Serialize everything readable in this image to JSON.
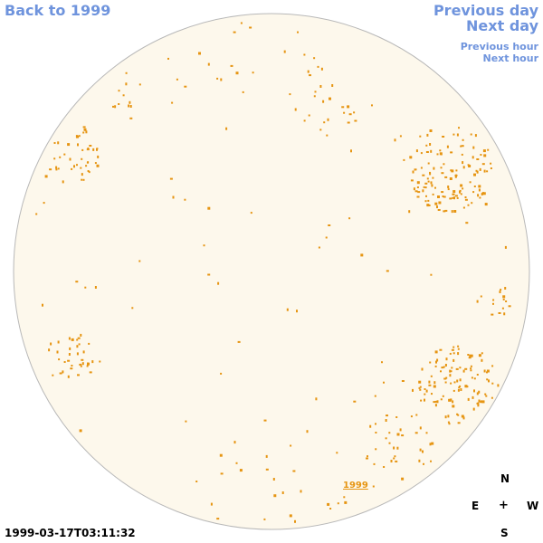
{
  "nav": {
    "back_label": "Back to 1999",
    "prev_day_label": "Previous day",
    "next_day_label": "Next day",
    "prev_hour_label": "Previous hour",
    "next_hour_label": "Next hour"
  },
  "sky": {
    "disc_fill": "#fdf8ec",
    "disc_stroke": "#b8b8b8",
    "marker_color": "#e69512",
    "year_label": "1999"
  },
  "compass": {
    "n": "N",
    "e": "E",
    "center": "+",
    "w": "W",
    "s": "S"
  },
  "status": {
    "timestamp": "1999-03-17T03:11:32"
  }
}
